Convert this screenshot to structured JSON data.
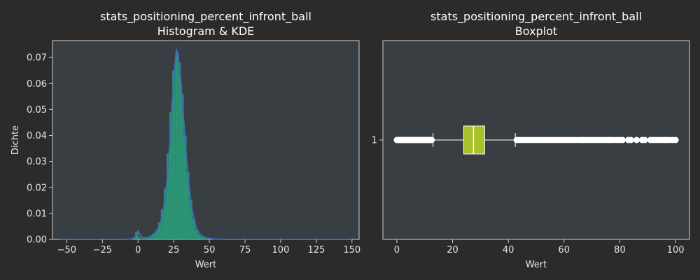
{
  "chart_data": [
    {
      "type": "histogram",
      "title": "stats_positioning_percent_infront_ball",
      "subtitle": "Histogram & KDE",
      "xlabel": "Wert",
      "ylabel": "Dichte",
      "xlim": [
        -60,
        155
      ],
      "ylim": [
        0,
        0.0765
      ],
      "xticks": [
        -50,
        -25,
        0,
        25,
        50,
        75,
        100,
        125,
        150
      ],
      "yticks": [
        0.0,
        0.01,
        0.02,
        0.03,
        0.04,
        0.05,
        0.06,
        0.07
      ],
      "ytick_labels": [
        "0.00",
        "0.01",
        "0.02",
        "0.03",
        "0.04",
        "0.05",
        "0.06",
        "0.07"
      ],
      "grid": false,
      "bar_color": "#2a9d7a",
      "kde_color": "#3b6fb6",
      "bins": {
        "x": [
          -1,
          1,
          3,
          5,
          7,
          9,
          11,
          13,
          15,
          17,
          19,
          21,
          23,
          25,
          27,
          29,
          31,
          33,
          35,
          37,
          39,
          41,
          43,
          45,
          47,
          49,
          51
        ],
        "values": [
          0.003,
          0.0008,
          0.0003,
          0.0004,
          0.0006,
          0.001,
          0.0018,
          0.0035,
          0.0065,
          0.0115,
          0.0195,
          0.033,
          0.049,
          0.065,
          0.0715,
          0.068,
          0.056,
          0.04,
          0.026,
          0.015,
          0.008,
          0.004,
          0.002,
          0.001,
          0.0005,
          0.0003,
          0.0002
        ]
      },
      "kde": {
        "x": [
          -55,
          -10,
          -4,
          -2,
          0,
          2,
          4,
          8,
          12,
          14,
          16,
          18,
          20,
          22,
          24,
          26,
          27,
          28,
          30,
          32,
          34,
          36,
          38,
          40,
          42,
          44,
          48,
          52,
          60,
          80,
          120,
          150
        ],
        "y": [
          0.0,
          0.0,
          0.0002,
          0.001,
          0.0032,
          0.0012,
          0.0005,
          0.0008,
          0.0025,
          0.004,
          0.007,
          0.012,
          0.021,
          0.035,
          0.053,
          0.068,
          0.0728,
          0.0715,
          0.061,
          0.046,
          0.031,
          0.019,
          0.011,
          0.006,
          0.0032,
          0.0016,
          0.0005,
          0.0002,
          0.0,
          0.0,
          0.0,
          0.0
        ]
      }
    },
    {
      "type": "boxplot",
      "title": "stats_positioning_percent_infront_ball",
      "subtitle": "Boxplot",
      "xlabel": "Wert",
      "xlim": [
        -5,
        105
      ],
      "xticks": [
        0,
        20,
        40,
        60,
        80,
        100
      ],
      "yticks": [
        "1"
      ],
      "grid": false,
      "box_color": "#a8c12a",
      "box": {
        "q1": 24,
        "median": 27.5,
        "q3": 31.5,
        "whisker_low": 13,
        "whisker_high": 42.5
      },
      "outliers_low": [
        0,
        0.5,
        1,
        1.5,
        2,
        2.5,
        3,
        3.5,
        4,
        4.5,
        5,
        5.5,
        6,
        6.5,
        7,
        7.5,
        8,
        8.5,
        9,
        9.5,
        10,
        10.5,
        11,
        11.5,
        12,
        12.5
      ],
      "outliers_high": [
        43,
        44,
        45,
        46,
        47,
        48,
        49,
        50,
        51,
        52,
        53,
        54,
        55,
        56,
        57,
        58,
        59,
        60,
        61,
        62,
        63,
        64,
        65,
        66,
        67,
        68,
        69,
        70,
        71,
        72,
        73,
        74,
        75,
        76,
        77,
        78,
        79,
        80,
        81,
        83,
        84,
        86,
        88,
        89,
        91,
        92,
        93,
        94,
        95,
        96,
        97,
        98,
        99,
        100
      ]
    }
  ]
}
